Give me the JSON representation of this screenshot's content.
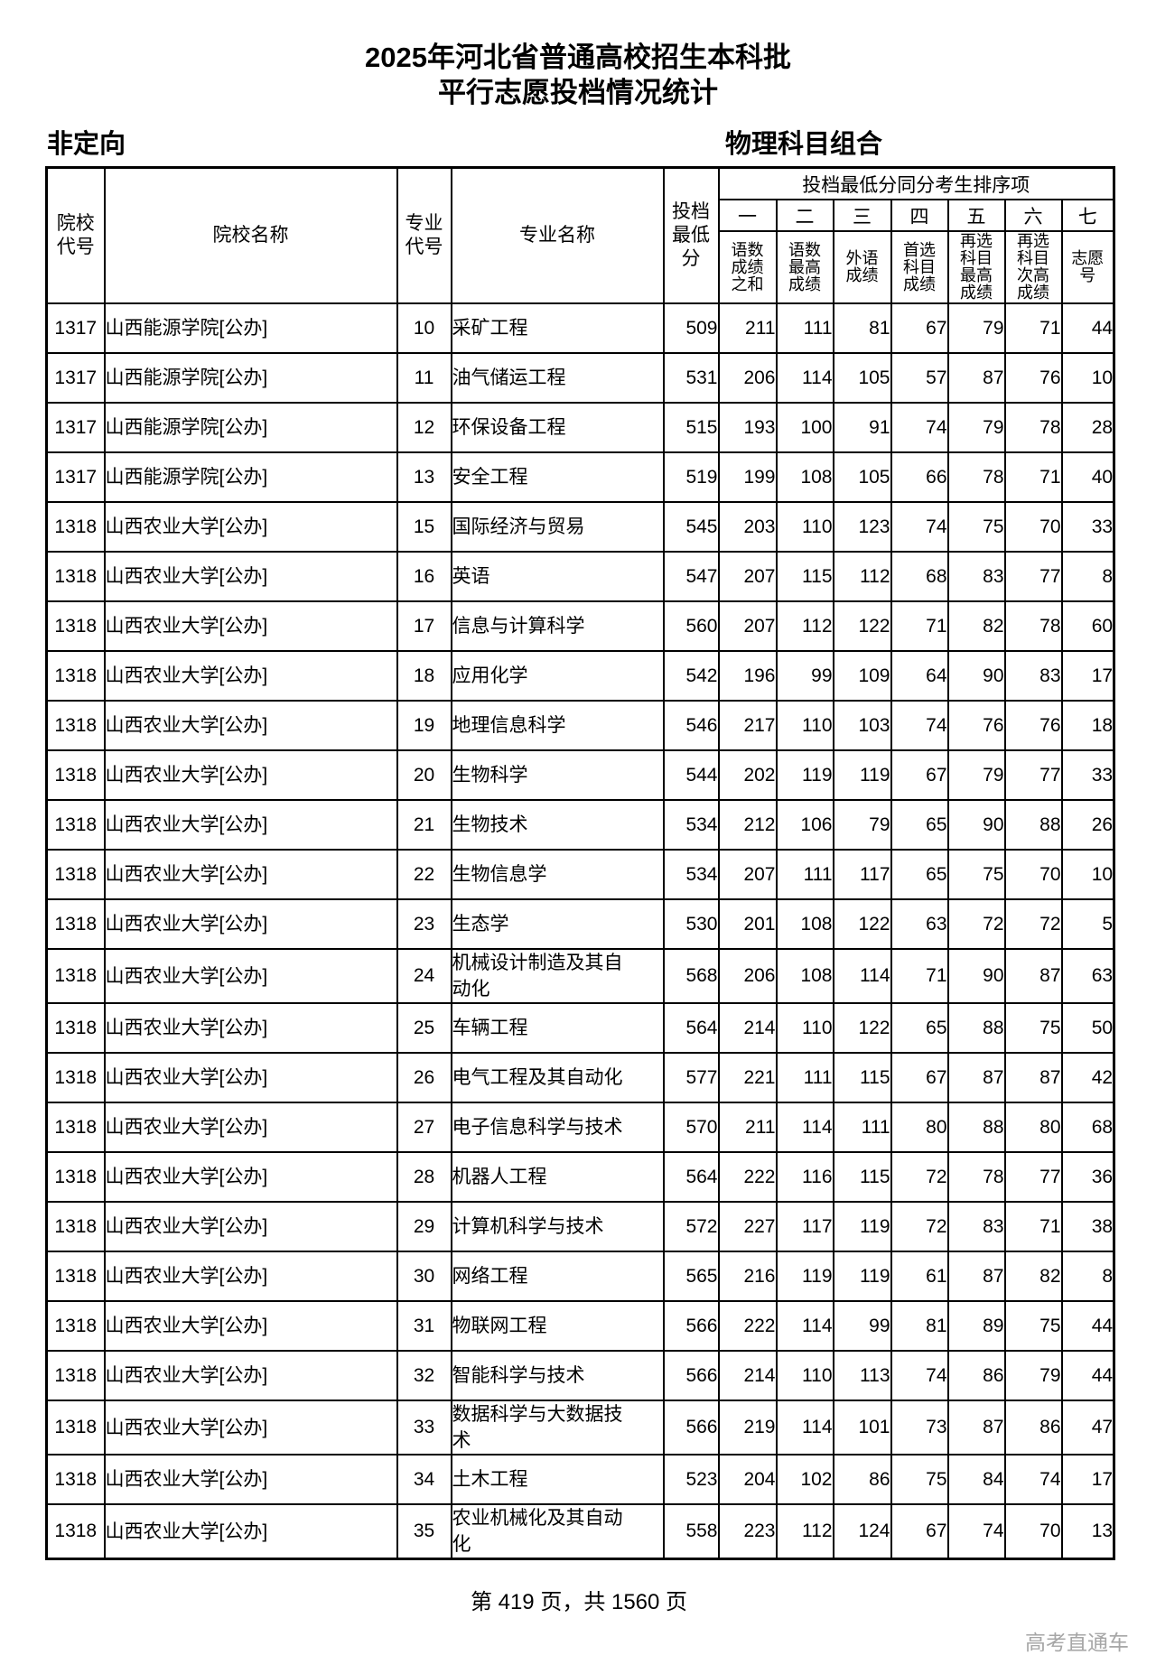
{
  "title": {
    "line1": "2025年河北省普通高校招生本科批",
    "line2": "平行志愿投档情况统计"
  },
  "subheader": {
    "plan_type": "非定向",
    "subject_group": "物理科目组合"
  },
  "table": {
    "headers": {
      "college_code": "院校\n代号",
      "college_name": "院校名称",
      "major_code": "专业\n代号",
      "major_name": "专业名称",
      "min_score": "投档\n最低\n分",
      "sorter_group": "投档最低分同分考生排序项"
    },
    "sorter_numbers": [
      "一",
      "二",
      "三",
      "四",
      "五",
      "六",
      "七"
    ],
    "sorter_labels": [
      "语数\n成绩\n之和",
      "语数\n最高\n成绩",
      "外语\n成绩",
      "首选\n科目\n成绩",
      "再选\n科目\n最高\n成绩",
      "再选\n科目\n次高\n成绩",
      "志愿\n号"
    ],
    "rows": [
      [
        "1317",
        "山西能源学院[公办]",
        "10",
        "采矿工程",
        509,
        211,
        111,
        81,
        67,
        79,
        71,
        44
      ],
      [
        "1317",
        "山西能源学院[公办]",
        "11",
        "油气储运工程",
        531,
        206,
        114,
        105,
        57,
        87,
        76,
        10
      ],
      [
        "1317",
        "山西能源学院[公办]",
        "12",
        "环保设备工程",
        515,
        193,
        100,
        91,
        74,
        79,
        78,
        28
      ],
      [
        "1317",
        "山西能源学院[公办]",
        "13",
        "安全工程",
        519,
        199,
        108,
        105,
        66,
        78,
        71,
        40
      ],
      [
        "1318",
        "山西农业大学[公办]",
        "15",
        "国际经济与贸易",
        545,
        203,
        110,
        123,
        74,
        75,
        70,
        33
      ],
      [
        "1318",
        "山西农业大学[公办]",
        "16",
        "英语",
        547,
        207,
        115,
        112,
        68,
        83,
        77,
        8
      ],
      [
        "1318",
        "山西农业大学[公办]",
        "17",
        "信息与计算科学",
        560,
        207,
        112,
        122,
        71,
        82,
        78,
        60
      ],
      [
        "1318",
        "山西农业大学[公办]",
        "18",
        "应用化学",
        542,
        196,
        99,
        109,
        64,
        90,
        83,
        17
      ],
      [
        "1318",
        "山西农业大学[公办]",
        "19",
        "地理信息科学",
        546,
        217,
        110,
        103,
        74,
        76,
        76,
        18
      ],
      [
        "1318",
        "山西农业大学[公办]",
        "20",
        "生物科学",
        544,
        202,
        119,
        119,
        67,
        79,
        77,
        33
      ],
      [
        "1318",
        "山西农业大学[公办]",
        "21",
        "生物技术",
        534,
        212,
        106,
        79,
        65,
        90,
        88,
        26
      ],
      [
        "1318",
        "山西农业大学[公办]",
        "22",
        "生物信息学",
        534,
        207,
        111,
        117,
        65,
        75,
        70,
        10
      ],
      [
        "1318",
        "山西农业大学[公办]",
        "23",
        "生态学",
        530,
        201,
        108,
        122,
        63,
        72,
        72,
        5
      ],
      [
        "1318",
        "山西农业大学[公办]",
        "24",
        "机械设计制造及其自\n动化",
        568,
        206,
        108,
        114,
        71,
        90,
        87,
        63
      ],
      [
        "1318",
        "山西农业大学[公办]",
        "25",
        "车辆工程",
        564,
        214,
        110,
        122,
        65,
        88,
        75,
        50
      ],
      [
        "1318",
        "山西农业大学[公办]",
        "26",
        "电气工程及其自动化",
        577,
        221,
        111,
        115,
        67,
        87,
        87,
        42
      ],
      [
        "1318",
        "山西农业大学[公办]",
        "27",
        "电子信息科学与技术",
        570,
        211,
        114,
        111,
        80,
        88,
        80,
        68
      ],
      [
        "1318",
        "山西农业大学[公办]",
        "28",
        "机器人工程",
        564,
        222,
        116,
        115,
        72,
        78,
        77,
        36
      ],
      [
        "1318",
        "山西农业大学[公办]",
        "29",
        "计算机科学与技术",
        572,
        227,
        117,
        119,
        72,
        83,
        71,
        38
      ],
      [
        "1318",
        "山西农业大学[公办]",
        "30",
        "网络工程",
        565,
        216,
        119,
        119,
        61,
        87,
        82,
        8
      ],
      [
        "1318",
        "山西农业大学[公办]",
        "31",
        "物联网工程",
        566,
        222,
        114,
        99,
        81,
        89,
        75,
        44
      ],
      [
        "1318",
        "山西农业大学[公办]",
        "32",
        "智能科学与技术",
        566,
        214,
        110,
        113,
        74,
        86,
        79,
        44
      ],
      [
        "1318",
        "山西农业大学[公办]",
        "33",
        "数据科学与大数据技\n术",
        566,
        219,
        114,
        101,
        73,
        87,
        86,
        47
      ],
      [
        "1318",
        "山西农业大学[公办]",
        "34",
        "土木工程",
        523,
        204,
        102,
        86,
        75,
        84,
        74,
        17
      ],
      [
        "1318",
        "山西农业大学[公办]",
        "35",
        "农业机械化及其自动\n化",
        558,
        223,
        112,
        124,
        67,
        74,
        70,
        13
      ]
    ]
  },
  "footer": {
    "page_info": "第 419 页，共 1560 页",
    "watermark": "高考直通车"
  }
}
